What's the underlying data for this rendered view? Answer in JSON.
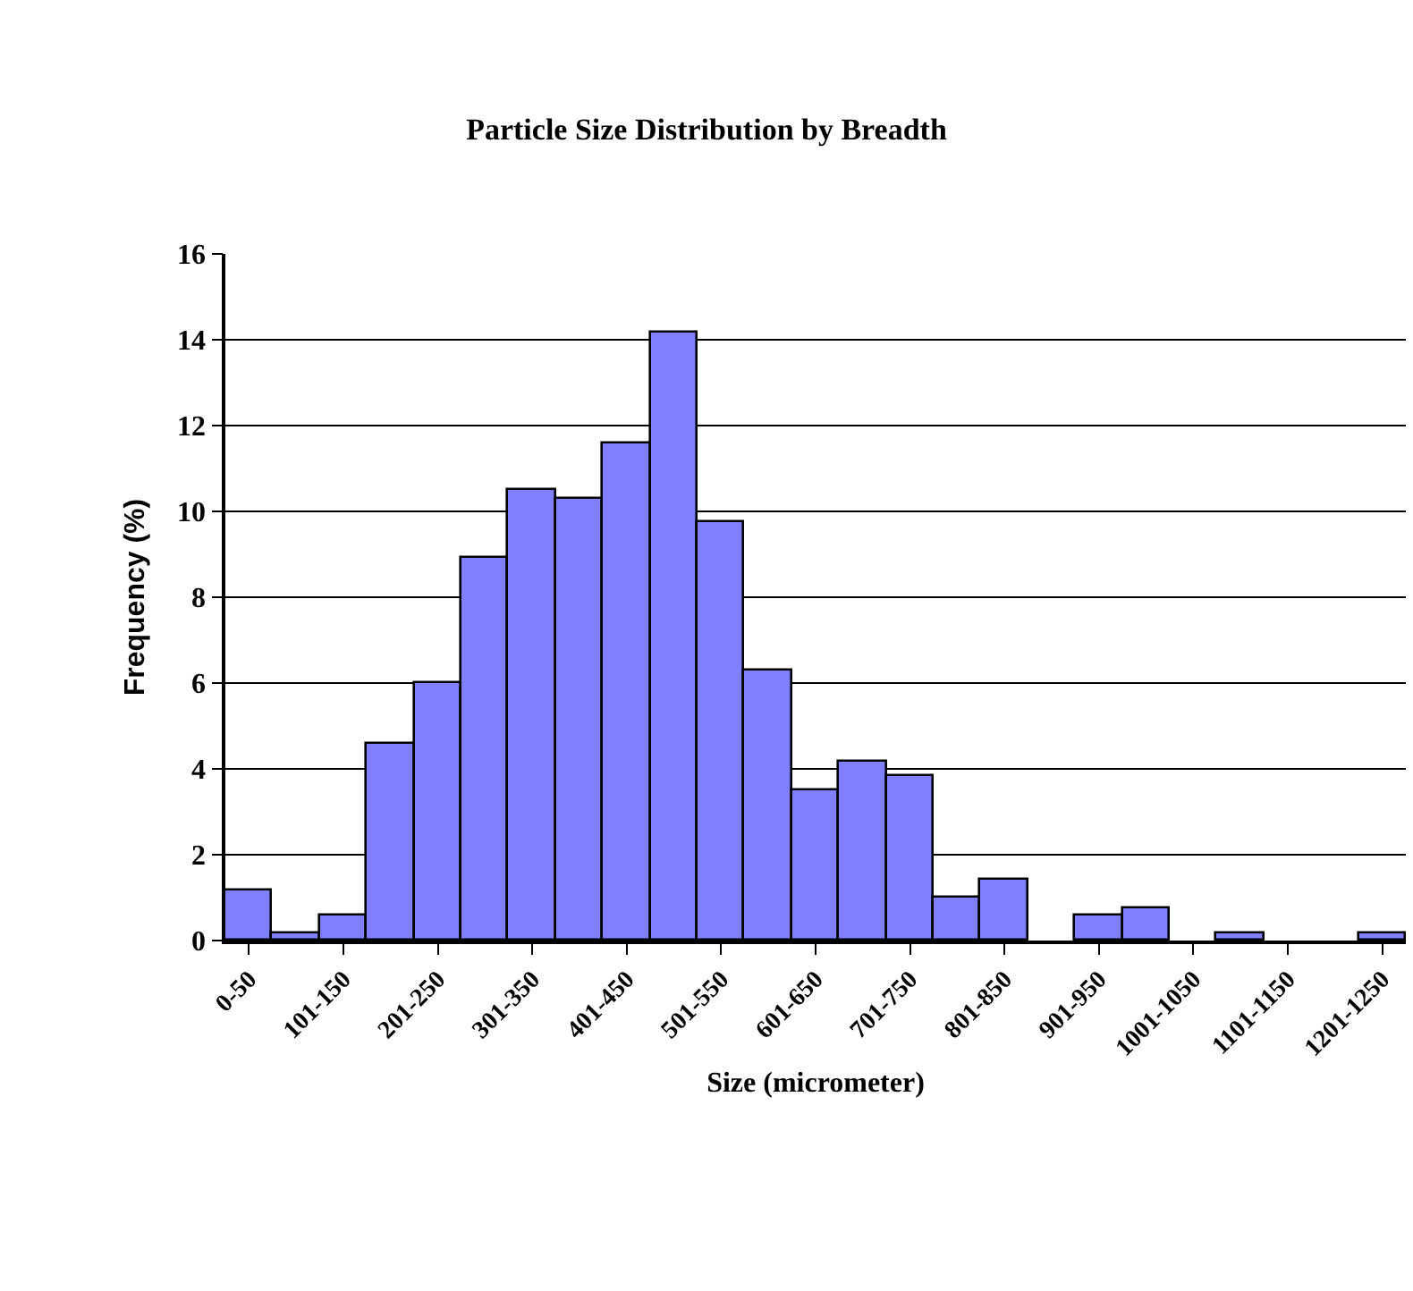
{
  "chart_data": {
    "type": "bar",
    "title": "Particle Size Distribution by Breadth",
    "xlabel": "Size (micrometer)",
    "ylabel": "Frequency (%)",
    "categories": [
      "0-50",
      null,
      "101-150",
      null,
      "201-250",
      null,
      "301-350",
      null,
      "401-450",
      null,
      "501-550",
      null,
      "601-650",
      null,
      "701-750",
      null,
      "801-850",
      null,
      "901-950",
      null,
      "1001-1050",
      null,
      "1101-1150",
      null,
      "1201-1250"
    ],
    "values": [
      1.15,
      0.15,
      0.57,
      4.6,
      6.0,
      8.9,
      10.5,
      10.3,
      11.6,
      14.15,
      9.75,
      6.3,
      3.5,
      4.15,
      3.85,
      1.0,
      1.4,
      0,
      0.57,
      0.74,
      0,
      0.15,
      0,
      0,
      0.15
    ],
    "color": "#8080ff",
    "ylim": [
      0,
      16
    ],
    "yticks": [
      0,
      2,
      4,
      6,
      8,
      10,
      12,
      14,
      16
    ],
    "grid": "y",
    "legend": false
  }
}
